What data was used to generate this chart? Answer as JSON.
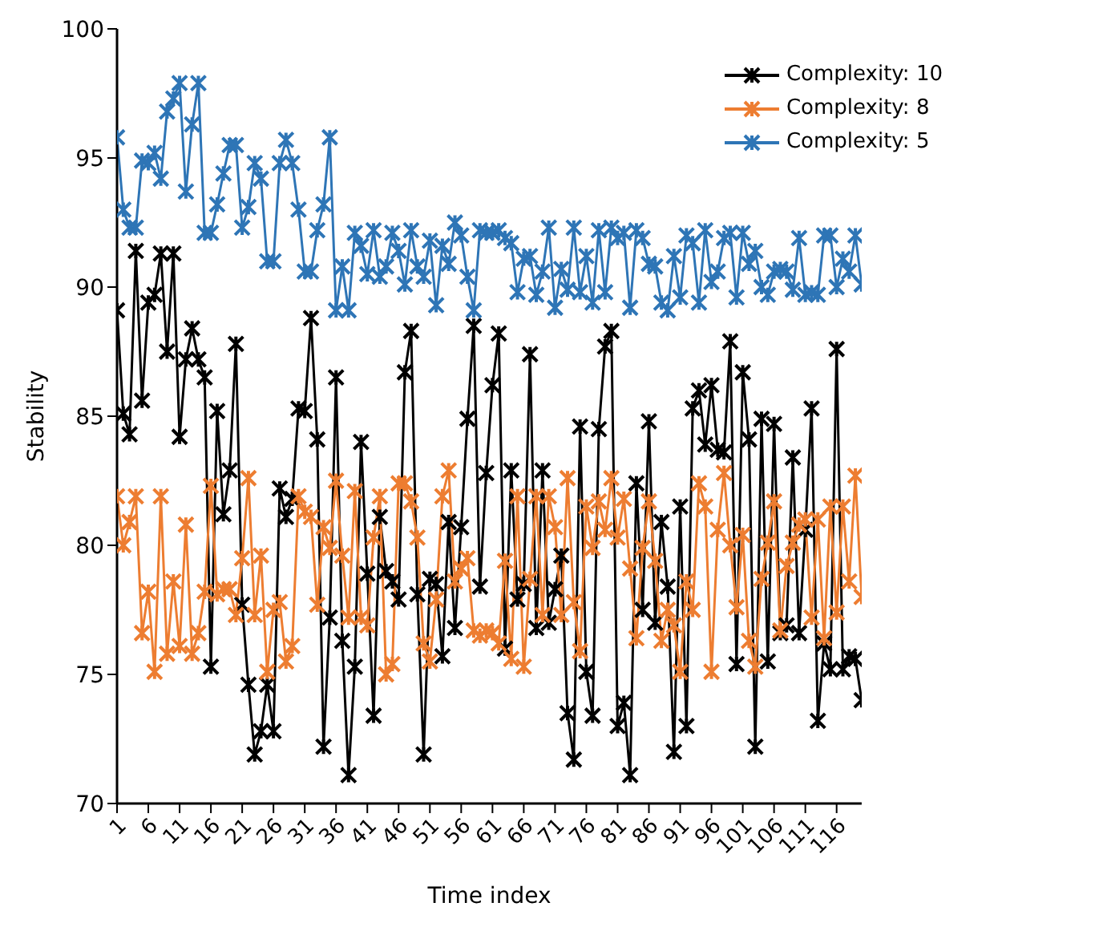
{
  "chart_data": {
    "type": "line",
    "xlabel": "Time index",
    "ylabel": "Stability",
    "x": [
      1,
      2,
      3,
      4,
      5,
      6,
      7,
      8,
      9,
      10,
      11,
      12,
      13,
      14,
      15,
      16,
      17,
      18,
      19,
      20,
      21,
      22,
      23,
      24,
      25,
      26,
      27,
      28,
      29,
      30,
      31,
      32,
      33,
      34,
      35,
      36,
      37,
      38,
      39,
      40,
      41,
      42,
      43,
      44,
      45,
      46,
      47,
      48,
      49,
      50,
      51,
      52,
      53,
      54,
      55,
      56,
      57,
      58,
      59,
      60,
      61,
      62,
      63,
      64,
      65,
      66,
      67,
      68,
      69,
      70,
      71,
      72,
      73,
      74,
      75,
      76,
      77,
      78,
      79,
      80,
      81,
      82,
      83,
      84,
      85,
      86,
      87,
      88,
      89,
      90,
      91,
      92,
      93,
      94,
      95,
      96,
      97,
      98,
      99,
      100,
      101,
      102,
      103,
      104,
      105,
      106,
      107,
      108,
      109,
      110,
      111,
      112,
      113,
      114,
      115,
      116,
      117,
      118,
      119,
      120
    ],
    "xlim": [
      1,
      120
    ],
    "xticks": [
      1,
      6,
      11,
      16,
      21,
      26,
      31,
      36,
      41,
      46,
      51,
      56,
      61,
      66,
      71,
      76,
      81,
      86,
      91,
      96,
      101,
      106,
      111,
      116
    ],
    "ylim": [
      70,
      100
    ],
    "yticks": [
      70,
      75,
      80,
      85,
      90,
      95,
      100
    ],
    "grid": false,
    "legend": "top right",
    "marker": "cross",
    "line_style": "solid",
    "series": [
      {
        "name": "Complexity: 10",
        "color": "#000000",
        "values": [
          89.1,
          85.1,
          84.3,
          91.4,
          85.6,
          89.4,
          89.7,
          91.3,
          87.5,
          91.3,
          84.2,
          87.2,
          88.4,
          87.2,
          86.5,
          75.3,
          85.2,
          81.2,
          82.9,
          87.8,
          77.7,
          74.6,
          71.9,
          72.8,
          74.6,
          72.8,
          82.2,
          81.1,
          81.8,
          85.3,
          85.2,
          88.8,
          84.1,
          72.2,
          77.2,
          86.5,
          76.3,
          71.1,
          75.3,
          84.0,
          78.9,
          73.4,
          81.1,
          79.0,
          78.6,
          77.9,
          86.7,
          88.3,
          78.1,
          71.9,
          78.7,
          78.5,
          75.7,
          80.9,
          76.8,
          80.7,
          84.9,
          88.5,
          78.4,
          82.8,
          86.2,
          88.2,
          76.0,
          82.9,
          77.9,
          78.5,
          87.4,
          76.8,
          82.9,
          77.0,
          78.3,
          79.6,
          73.5,
          71.7,
          84.6,
          75.1,
          73.4,
          84.5,
          87.7,
          88.3,
          73.0,
          73.9,
          71.1,
          82.4,
          77.5,
          84.8,
          77.0,
          80.9,
          78.4,
          72.0,
          81.5,
          73.0,
          85.3,
          86.0,
          83.9,
          86.2,
          83.7,
          83.6,
          87.9,
          75.4,
          86.7,
          84.1,
          72.2,
          84.9,
          75.5,
          84.7,
          76.6,
          76.9,
          83.4,
          76.6,
          80.6,
          85.3,
          73.2,
          76.2,
          75.2,
          87.6,
          75.2,
          75.7,
          75.6,
          74.0
        ]
      },
      {
        "name": "Complexity: 8",
        "color": "#ed7d31",
        "values": [
          81.9,
          80.0,
          80.9,
          81.9,
          76.6,
          78.2,
          75.1,
          81.9,
          75.8,
          78.6,
          76.1,
          80.8,
          75.8,
          76.6,
          78.2,
          82.3,
          78.1,
          78.3,
          78.3,
          77.3,
          79.5,
          82.6,
          77.3,
          79.6,
          75.1,
          77.5,
          77.8,
          75.5,
          76.1,
          81.9,
          81.3,
          81.1,
          77.7,
          80.7,
          79.9,
          82.5,
          79.6,
          77.2,
          82.1,
          77.2,
          76.9,
          80.3,
          81.9,
          75.0,
          75.4,
          82.4,
          82.4,
          81.7,
          80.3,
          76.2,
          75.5,
          77.9,
          81.9,
          82.9,
          78.6,
          79.1,
          79.5,
          76.7,
          76.5,
          76.7,
          76.6,
          76.2,
          79.4,
          75.6,
          81.9,
          75.3,
          78.7,
          81.9,
          77.3,
          81.9,
          80.7,
          77.3,
          82.6,
          77.8,
          75.9,
          81.5,
          79.9,
          81.7,
          80.6,
          82.6,
          80.3,
          81.8,
          79.1,
          76.4,
          79.9,
          81.7,
          79.4,
          76.3,
          77.5,
          76.9,
          75.1,
          78.6,
          77.5,
          82.4,
          81.5,
          75.1,
          80.6,
          82.8,
          80.0,
          77.6,
          80.4,
          76.3,
          75.3,
          78.7,
          80.1,
          81.7,
          76.7,
          79.2,
          80.1,
          80.8,
          81.0,
          77.2,
          81.0,
          76.4,
          81.5,
          77.4,
          81.5,
          78.6,
          82.7,
          78.0
        ]
      },
      {
        "name": "Complexity: 5",
        "color": "#2e75b6",
        "values": [
          95.8,
          93.0,
          92.3,
          92.3,
          94.9,
          94.8,
          95.2,
          94.2,
          96.8,
          97.3,
          97.9,
          93.7,
          96.3,
          97.9,
          92.1,
          92.1,
          93.2,
          94.4,
          95.5,
          95.5,
          92.3,
          93.1,
          94.8,
          94.2,
          91.0,
          91.0,
          94.8,
          95.7,
          94.8,
          93.0,
          90.6,
          90.6,
          92.2,
          93.2,
          95.8,
          89.1,
          90.8,
          89.1,
          92.1,
          91.6,
          90.5,
          92.2,
          90.4,
          90.8,
          92.1,
          91.4,
          90.1,
          92.2,
          90.8,
          90.4,
          91.8,
          89.3,
          91.6,
          90.9,
          92.5,
          92.0,
          90.4,
          89.1,
          92.2,
          92.1,
          92.1,
          92.2,
          91.9,
          91.7,
          89.8,
          91.1,
          91.2,
          89.7,
          90.6,
          92.3,
          89.2,
          90.7,
          89.9,
          92.3,
          89.8,
          91.2,
          89.4,
          92.2,
          89.8,
          92.3,
          91.9,
          92.1,
          89.2,
          92.2,
          91.9,
          90.9,
          90.8,
          89.4,
          89.1,
          91.2,
          89.6,
          92.0,
          91.7,
          89.4,
          92.2,
          90.2,
          90.6,
          91.9,
          92.1,
          89.6,
          92.1,
          90.9,
          91.4,
          90.0,
          89.7,
          90.6,
          90.7,
          90.6,
          89.9,
          91.9,
          89.7,
          89.8,
          89.7,
          92.0,
          92.0,
          90.0,
          91.1,
          90.6,
          92.0,
          90.1
        ]
      }
    ]
  }
}
